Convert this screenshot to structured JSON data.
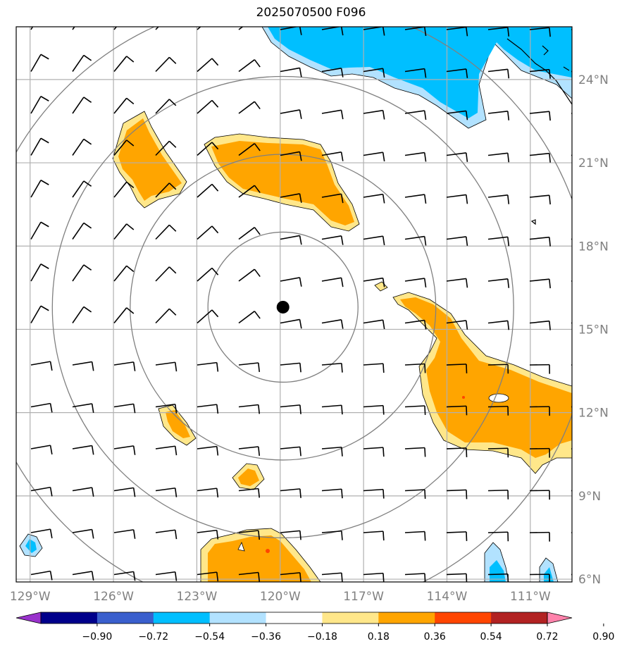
{
  "title": "2025070500 F096",
  "map": {
    "lon_labels": [
      "129°W",
      "126°W",
      "123°W",
      "120°W",
      "117°W",
      "114°W",
      "111°W"
    ],
    "lat_labels": [
      "24°N",
      "21°N",
      "18°N",
      "15°N",
      "12°N",
      "9°N",
      "6°N"
    ],
    "lon_range": [
      -129.5,
      -109.5
    ],
    "lat_range": [
      5.9,
      25.9
    ],
    "center": {
      "lon": -119.9,
      "lat": 15.8
    },
    "range_rings_deg": [
      2.7,
      5.5,
      8.3,
      11.1
    ]
  },
  "colorbar": {
    "tick_labels": [
      "−0.90",
      "−0.72",
      "−0.54",
      "−0.36",
      "−0.18",
      "0.18",
      "0.36",
      "0.54",
      "0.72",
      "0.90"
    ],
    "colors": [
      "#9932cc",
      "#00008b",
      "#3a5fcd",
      "#00bfff",
      "#b2e2ff",
      "#ffffff",
      "#ffe78a",
      "#ffa500",
      "#ff4500",
      "#b22222",
      "#ff82ab"
    ]
  }
}
